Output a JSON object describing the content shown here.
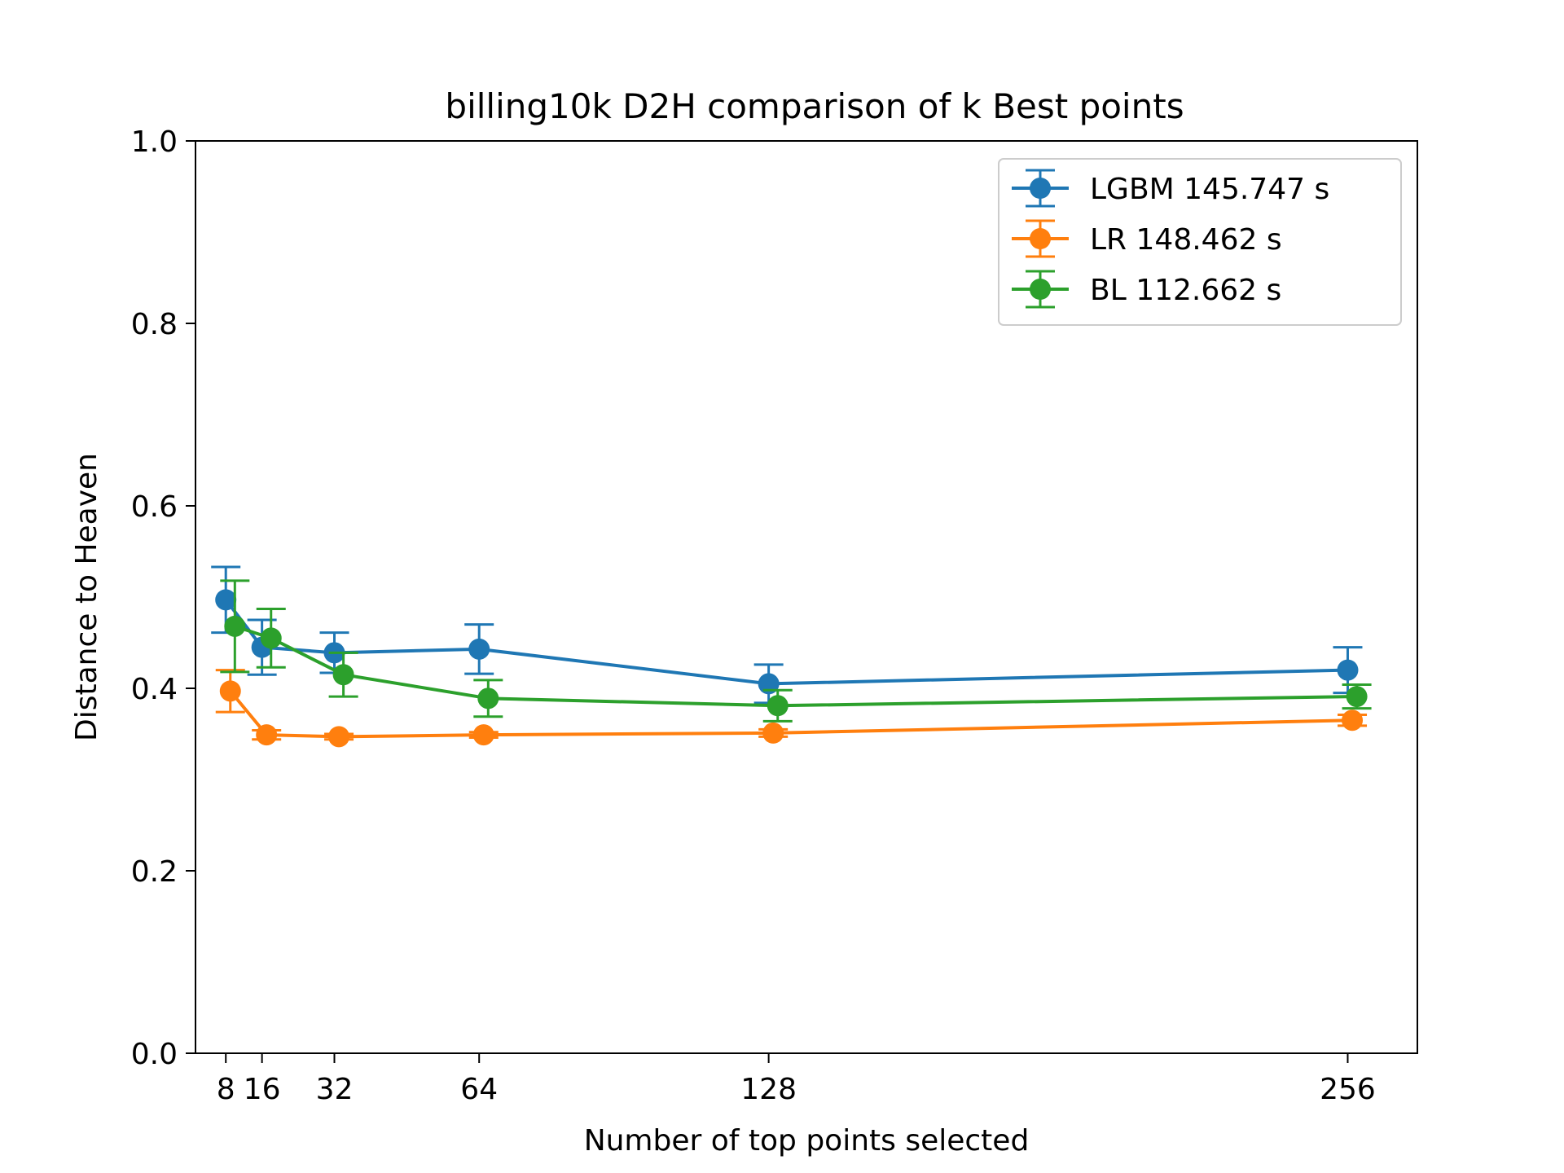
{
  "chart_data": {
    "type": "line",
    "title": "billing10k D2H comparison of k Best points",
    "xlabel": "Number of top points selected",
    "ylabel": "Distance to Heaven",
    "xlim": [
      1.3,
      271.4
    ],
    "ylim": [
      0.0,
      1.0
    ],
    "x_ticks": [
      8,
      16,
      32,
      64,
      128,
      256
    ],
    "x_tick_labels": [
      "8",
      "16",
      "32",
      "64",
      "128",
      "256"
    ],
    "y_ticks": [
      0.0,
      0.2,
      0.4,
      0.6,
      0.8,
      1.0
    ],
    "y_tick_labels": [
      "0.0",
      "0.2",
      "0.4",
      "0.6",
      "0.8",
      "1.0"
    ],
    "legend_position": "top-right",
    "series": [
      {
        "name": "LGBM 145.747 s",
        "color": "#1f77b4",
        "x": [
          8,
          16,
          32,
          64,
          128,
          256
        ],
        "values": [
          0.497,
          0.445,
          0.439,
          0.443,
          0.405,
          0.42
        ],
        "errors": [
          0.036,
          0.03,
          0.022,
          0.027,
          0.021,
          0.025
        ]
      },
      {
        "name": "LR 148.462 s",
        "color": "#ff7f0e",
        "x": [
          9,
          17,
          33,
          65,
          129,
          257
        ],
        "values": [
          0.397,
          0.349,
          0.347,
          0.349,
          0.351,
          0.365
        ],
        "errors": [
          0.023,
          0.005,
          0.003,
          0.003,
          0.004,
          0.006
        ]
      },
      {
        "name": "BL 112.662 s",
        "color": "#2ca02c",
        "x": [
          10,
          18,
          34,
          66,
          130,
          258
        ],
        "values": [
          0.468,
          0.455,
          0.415,
          0.389,
          0.381,
          0.391
        ],
        "errors": [
          0.05,
          0.032,
          0.024,
          0.02,
          0.017,
          0.013
        ]
      }
    ]
  }
}
